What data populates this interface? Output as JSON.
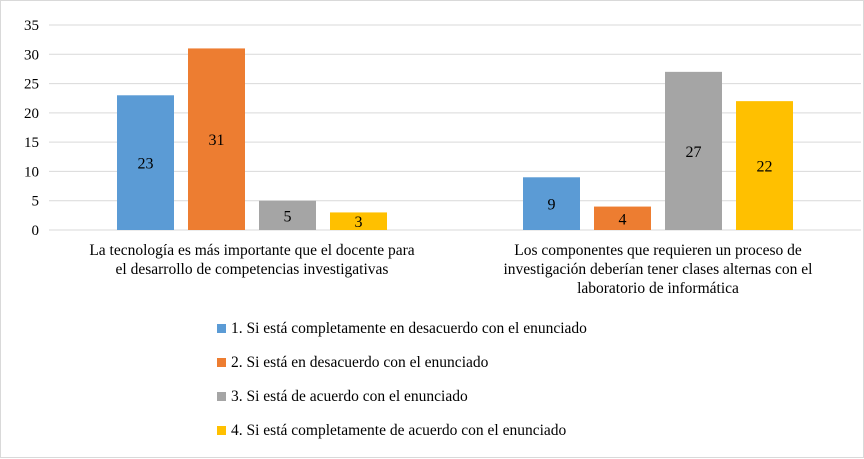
{
  "chart_data": {
    "type": "bar",
    "categories": [
      [
        "La tecnología es más importante que el docente para",
        "el desarrollo de competencias investigativas"
      ],
      [
        "Los componentes que requieren un proceso de",
        "investigación deberían tener clases alternas con el",
        "laboratorio de informática"
      ]
    ],
    "series": [
      {
        "name": "1. Si está completamente en desacuerdo con el enunciado",
        "color": "#5b9bd5",
        "values": [
          23,
          9
        ]
      },
      {
        "name": "2. Si está en desacuerdo con el enunciado",
        "color": "#ed7d31",
        "values": [
          31,
          4
        ]
      },
      {
        "name": "3. Si está de acuerdo con el enunciado",
        "color": "#a5a5a5",
        "values": [
          5,
          27
        ]
      },
      {
        "name": "4. Si está completamente de acuerdo con el enunciado",
        "color": "#ffc000",
        "values": [
          3,
          22
        ]
      }
    ],
    "y_ticks": [
      0,
      5,
      10,
      15,
      20,
      25,
      30,
      35
    ],
    "ylim": [
      0,
      35
    ],
    "grid": true,
    "data_labels": true,
    "legend_position": "bottom"
  }
}
